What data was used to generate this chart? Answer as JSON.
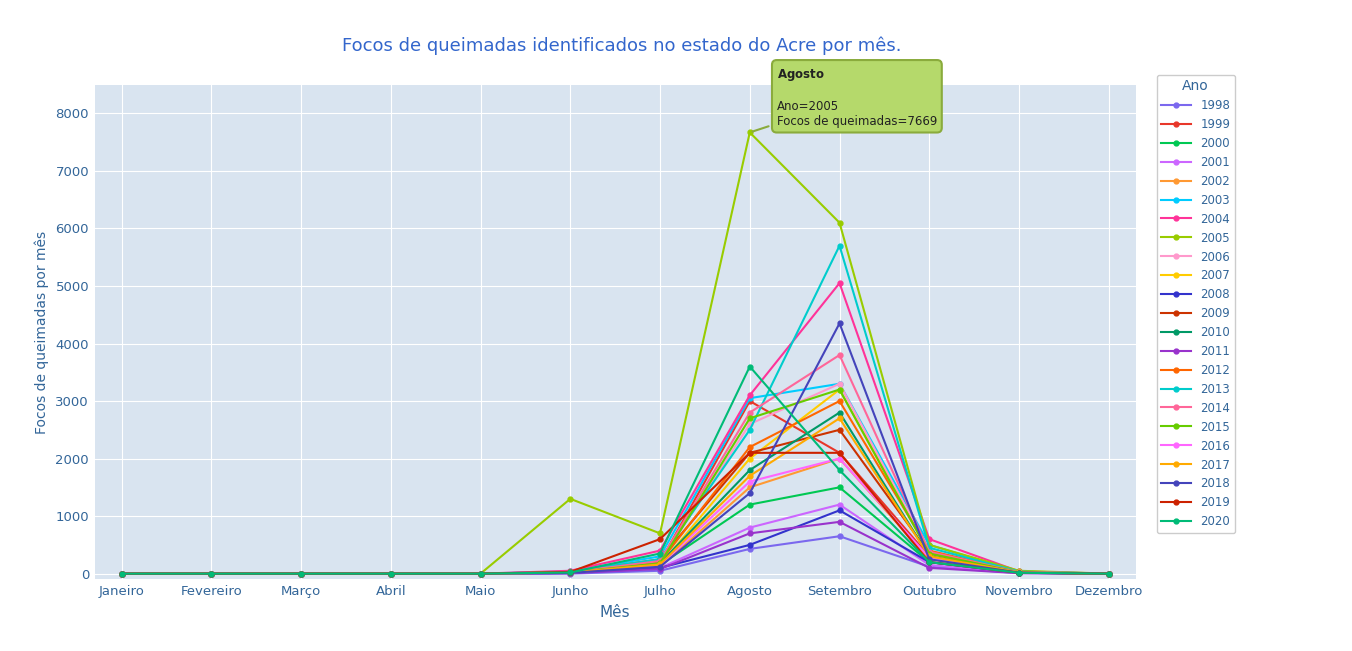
{
  "title": "Focos de queimadas identificados no estado do Acre por mês.",
  "xlabel": "Mês",
  "ylabel": "Focos de queimadas por mês",
  "months": [
    "Janeiro",
    "Fevereiro",
    "Março",
    "Abril",
    "Maio",
    "Junho",
    "Julho",
    "Agosto",
    "Setembro",
    "Outubro",
    "Novembro",
    "Dezembro"
  ],
  "background_color": "#d9e4f0",
  "fig_background": "#ffffff",
  "plot_area_top_strip": "#f8f9fa",
  "ylim": [
    -100,
    8500
  ],
  "yticks": [
    0,
    1000,
    2000,
    3000,
    4000,
    5000,
    6000,
    7000,
    8000
  ],
  "years_data": {
    "1998": {
      "color": "#7b68ee",
      "values": [
        0,
        0,
        0,
        0,
        0,
        0,
        50,
        430,
        650,
        120,
        10,
        0
      ]
    },
    "1999": {
      "color": "#e8372a",
      "values": [
        0,
        0,
        0,
        0,
        0,
        30,
        200,
        3000,
        2100,
        300,
        20,
        0
      ]
    },
    "2000": {
      "color": "#00c853",
      "values": [
        0,
        0,
        0,
        0,
        0,
        20,
        150,
        1200,
        1500,
        200,
        15,
        0
      ]
    },
    "2001": {
      "color": "#cc66ff",
      "values": [
        0,
        0,
        0,
        0,
        0,
        10,
        100,
        800,
        1200,
        150,
        10,
        0
      ]
    },
    "2002": {
      "color": "#ff9933",
      "values": [
        0,
        0,
        0,
        0,
        0,
        20,
        120,
        1500,
        2000,
        250,
        20,
        0
      ]
    },
    "2003": {
      "color": "#00ccff",
      "values": [
        0,
        0,
        0,
        0,
        0,
        40,
        300,
        3050,
        3300,
        500,
        30,
        0
      ]
    },
    "2004": {
      "color": "#ff3399",
      "values": [
        0,
        0,
        0,
        0,
        0,
        50,
        400,
        3100,
        5050,
        600,
        40,
        0
      ]
    },
    "2005": {
      "color": "#99cc00",
      "values": [
        0,
        0,
        0,
        0,
        0,
        1300,
        700,
        7669,
        6100,
        500,
        50,
        0
      ]
    },
    "2006": {
      "color": "#ff99cc",
      "values": [
        0,
        0,
        0,
        0,
        0,
        15,
        200,
        2600,
        3300,
        400,
        30,
        0
      ]
    },
    "2007": {
      "color": "#ffcc00",
      "values": [
        0,
        0,
        0,
        0,
        0,
        20,
        150,
        2000,
        3200,
        350,
        25,
        0
      ]
    },
    "2008": {
      "color": "#3333cc",
      "values": [
        0,
        0,
        0,
        0,
        0,
        10,
        100,
        500,
        1100,
        200,
        15,
        0
      ]
    },
    "2009": {
      "color": "#cc3300",
      "values": [
        0,
        0,
        0,
        0,
        0,
        20,
        250,
        2100,
        2500,
        350,
        25,
        0
      ]
    },
    "2010": {
      "color": "#009966",
      "values": [
        0,
        0,
        0,
        0,
        0,
        15,
        180,
        1800,
        2800,
        300,
        20,
        0
      ]
    },
    "2011": {
      "color": "#9933cc",
      "values": [
        0,
        0,
        0,
        0,
        0,
        10,
        80,
        700,
        900,
        100,
        8,
        0
      ]
    },
    "2012": {
      "color": "#ff6600",
      "values": [
        0,
        0,
        0,
        0,
        0,
        20,
        200,
        2200,
        3000,
        400,
        30,
        0
      ]
    },
    "2013": {
      "color": "#00cccc",
      "values": [
        0,
        0,
        0,
        0,
        0,
        30,
        250,
        2500,
        5700,
        450,
        35,
        0
      ]
    },
    "2014": {
      "color": "#ff6699",
      "values": [
        0,
        0,
        0,
        0,
        0,
        25,
        220,
        2800,
        3800,
        380,
        28,
        0
      ]
    },
    "2015": {
      "color": "#66cc00",
      "values": [
        0,
        0,
        0,
        0,
        0,
        20,
        180,
        2700,
        3200,
        350,
        25,
        0
      ]
    },
    "2016": {
      "color": "#ff66ff",
      "values": [
        0,
        0,
        0,
        0,
        0,
        15,
        150,
        1600,
        2000,
        280,
        20,
        0
      ]
    },
    "2017": {
      "color": "#ffaa00",
      "values": [
        0,
        0,
        0,
        0,
        0,
        18,
        160,
        1700,
        2700,
        300,
        22,
        0
      ]
    },
    "2018": {
      "color": "#4444bb",
      "values": [
        0,
        0,
        0,
        0,
        0,
        12,
        120,
        1400,
        4350,
        250,
        18,
        0
      ]
    },
    "2019": {
      "color": "#cc2200",
      "values": [
        0,
        0,
        0,
        0,
        0,
        30,
        600,
        2100,
        2100,
        200,
        15,
        0
      ]
    },
    "2020": {
      "color": "#00bb77",
      "values": [
        0,
        0,
        0,
        0,
        0,
        20,
        350,
        3600,
        1800,
        200,
        15,
        0
      ]
    }
  },
  "title_color": "#3366cc",
  "axis_label_color": "#336699",
  "tick_color": "#336699",
  "grid_color": "#ffffff",
  "legend_title": "Ano",
  "legend_title_color": "#336699",
  "tooltip_month": "Agosto",
  "tooltip_year": 2005,
  "tooltip_value": 7669,
  "tooltip_bg": "#b5d96b",
  "tooltip_border": "#8aab3c"
}
